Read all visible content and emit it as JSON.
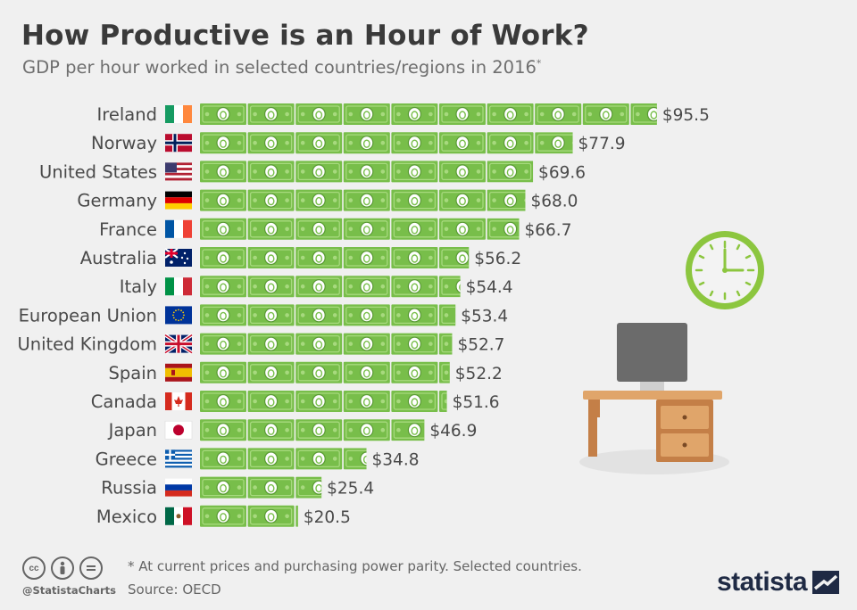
{
  "header": {
    "title": "How Productive is an Hour of Work?",
    "subtitle": "GDP per hour worked in selected countries/regions in 2016",
    "subtitle_mark": "*"
  },
  "chart_data": {
    "type": "bar",
    "orientation": "horizontal",
    "title": "How Productive is an Hour of Work?",
    "subtitle": "GDP per hour worked in selected countries/regions in 2016*",
    "categories": [
      "Ireland",
      "Norway",
      "United States",
      "Germany",
      "France",
      "Australia",
      "Italy",
      "European Union",
      "United Kingdom",
      "Spain",
      "Canada",
      "Japan",
      "Greece",
      "Russia",
      "Mexico"
    ],
    "values": [
      95.5,
      77.9,
      69.6,
      68.0,
      66.7,
      56.2,
      54.4,
      53.4,
      52.7,
      52.2,
      51.6,
      46.9,
      34.8,
      25.4,
      20.5
    ],
    "value_labels": [
      "$95.5",
      "$77.9",
      "$69.6",
      "$68.0",
      "$66.7",
      "$56.2",
      "$54.4",
      "$53.4",
      "$52.7",
      "$52.2",
      "$51.6",
      "$46.9",
      "$34.8",
      "$25.4",
      "$20.5"
    ],
    "unit": "USD",
    "xlim": [
      0,
      100
    ],
    "grid": false,
    "legend": "none",
    "flags": [
      "flag-ireland",
      "flag-norway",
      "flag-united-states",
      "flag-germany",
      "flag-france",
      "flag-australia",
      "flag-italy",
      "flag-european-union",
      "flag-united-kingdom",
      "flag-spain",
      "flag-canada",
      "flag-japan",
      "flag-greece",
      "flag-russia",
      "flag-mexico"
    ],
    "colors": {
      "bill": "#78be4a",
      "bill_dark": "#5a9a35",
      "bill_light": "#a7d97e",
      "text": "#4a4a4a"
    }
  },
  "illustration": {
    "clock_icon": "clock-icon",
    "desk_icon": "desk-with-monitor-icon",
    "clock_color": "#8cc63f",
    "desk_color": "#e0a56a"
  },
  "footer": {
    "footnote": "* At current prices and purchasing power parity. Selected countries.",
    "source": "Source: OECD",
    "handle": "@StatistaCharts",
    "brand": "statista",
    "license_icons": [
      "cc",
      "by",
      "nd"
    ]
  }
}
